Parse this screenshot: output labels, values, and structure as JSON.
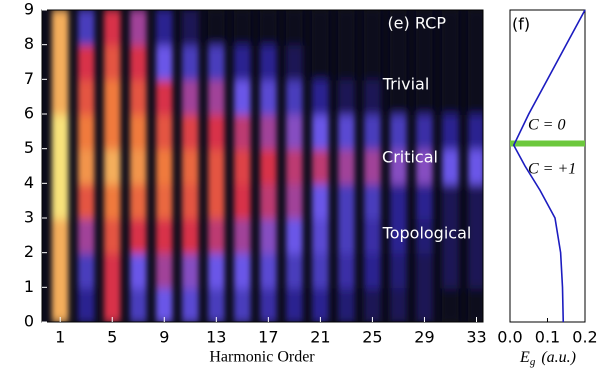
{
  "chart_data": [
    {
      "type": "heatmap",
      "title": "(e)  RCP",
      "xlabel": "Harmonic  Order",
      "annotations": [
        "Trivial",
        "Critical",
        "Topological"
      ],
      "x": [
        1,
        3,
        5,
        7,
        9,
        11,
        13,
        15,
        17,
        19,
        21,
        23,
        25,
        27,
        29,
        31,
        33
      ],
      "y": [
        0.5,
        1.5,
        2.5,
        3.5,
        4.5,
        5.5,
        6.5,
        7.5,
        8.5
      ],
      "z": [
        [
          0.9,
          0.2,
          0.6,
          0.3,
          0.4,
          0.35,
          0.3,
          0.3,
          0.25,
          0.2,
          0.2,
          0.15,
          0.1,
          0.1,
          0.1,
          0,
          0
        ],
        [
          0.9,
          0.3,
          0.6,
          0.4,
          0.5,
          0.45,
          0.4,
          0.4,
          0.35,
          0.3,
          0.3,
          0.25,
          0.2,
          0.15,
          0.1,
          0.1,
          0.1
        ],
        [
          0.9,
          0.5,
          0.7,
          0.6,
          0.6,
          0.6,
          0.55,
          0.5,
          0.45,
          0.4,
          0.35,
          0.3,
          0.25,
          0.2,
          0.15,
          0.1,
          0.1
        ],
        [
          1,
          0.7,
          0.8,
          0.75,
          0.75,
          0.7,
          0.7,
          0.6,
          0.55,
          0.5,
          0.4,
          0.3,
          0.3,
          0.2,
          0.2,
          0.1,
          0.1
        ],
        [
          1,
          0.85,
          0.9,
          0.85,
          0.8,
          0.75,
          0.7,
          0.65,
          0.6,
          0.55,
          0.55,
          0.5,
          0.5,
          0.45,
          0.45,
          0.4,
          0.4
        ],
        [
          1,
          0.8,
          0.8,
          0.8,
          0.7,
          0.65,
          0.6,
          0.55,
          0.5,
          0.45,
          0.4,
          0.35,
          0.3,
          0.3,
          0.25,
          0.2,
          0.2
        ],
        [
          0.9,
          0.7,
          0.8,
          0.7,
          0.6,
          0.5,
          0.5,
          0.4,
          0.35,
          0.3,
          0.2,
          0.1,
          0.1,
          0,
          0,
          0,
          0
        ],
        [
          0.9,
          0.6,
          0.7,
          0.6,
          0.4,
          0.3,
          0.3,
          0.2,
          0.2,
          0.1,
          0,
          0,
          0,
          0,
          0,
          0,
          0
        ],
        [
          0.9,
          0.3,
          0.6,
          0.5,
          0.2,
          0.1,
          0,
          0,
          0,
          0,
          0,
          0,
          0,
          0,
          0,
          0,
          0
        ]
      ],
      "colormap": [
        "#0b0b1a",
        "#2a2290",
        "#6a56e8",
        "#d8304a",
        "#f07a3c",
        "#f8e27a"
      ],
      "background": "#0b0b1a",
      "xlim": [
        -0.4,
        33.5
      ],
      "xticks": [
        1,
        5,
        9,
        13,
        17,
        21,
        25,
        29,
        33
      ],
      "ylim": [
        0,
        9
      ],
      "yticks": [
        0,
        1,
        2,
        3,
        4,
        5,
        6,
        7,
        8,
        9
      ]
    },
    {
      "type": "line",
      "title": "(f)",
      "xlabel": {
        "main": "E",
        "sub": "g",
        "unit": "(a.u.)"
      },
      "annotations": [
        "C = 0",
        "C = +1"
      ],
      "x": [
        0.142,
        0.14,
        0.135,
        0.12,
        0.08,
        0.04,
        0.01,
        0.05,
        0.1,
        0.15,
        0.2
      ],
      "values": [
        0,
        1,
        2,
        3,
        3.8,
        4.5,
        5.1,
        6,
        7,
        8,
        9
      ],
      "color": "#1c1cc0",
      "band_y": 5.15,
      "band_color": "#6cc83c",
      "xlim": [
        0,
        0.2
      ],
      "xticks": [
        {
          "value": 0,
          "label": "0.0"
        },
        0.1,
        0.2
      ],
      "ylim": [
        0,
        9
      ]
    }
  ]
}
